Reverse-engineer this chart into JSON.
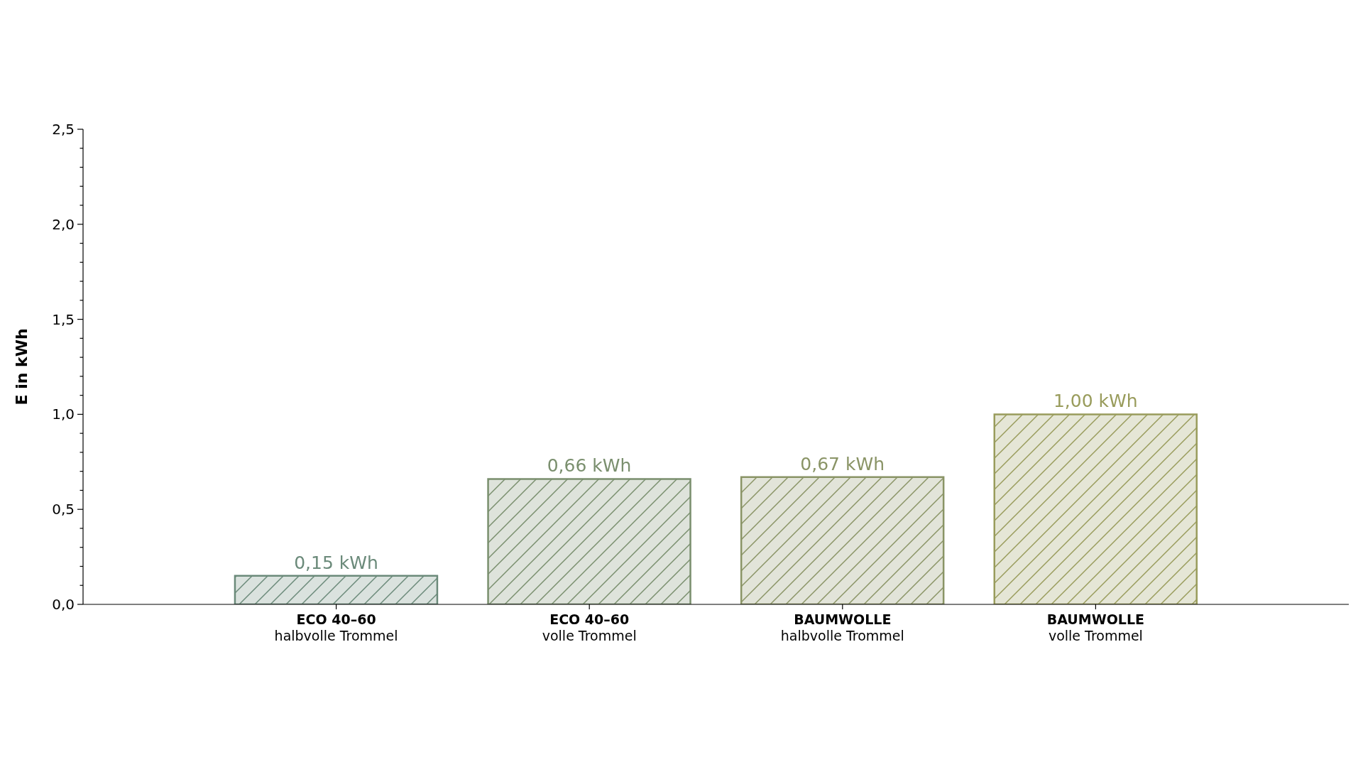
{
  "chart_data": {
    "type": "bar",
    "ylabel": "E in kWh",
    "categories": [
      "ECO 40–60\nhalbvolle Trommel",
      "ECO 40–60\nvolle Trommel",
      "BAUMWOLLE\nhalbvolle Trommel",
      "BAUMWOLLE\nvolle Trommel"
    ],
    "values": [
      0.15,
      0.66,
      0.67,
      1.0
    ],
    "colors": [
      "#6b8a7a",
      "#7a8f6e",
      "#8a9466",
      "#999c5c"
    ],
    "value_labels": [
      "0,15 kWh",
      "0,66 kWh",
      "0,67 kWh",
      "1,00 kWh"
    ],
    "ylim": [
      0,
      2.5
    ],
    "yticks": [
      {
        "value": 0,
        "label": "0,0"
      },
      {
        "value": 0.1,
        "label": null
      },
      {
        "value": 0.2,
        "label": null
      },
      {
        "value": 0.3,
        "label": null
      },
      {
        "value": 0.4,
        "label": null
      },
      {
        "value": 0.5,
        "label": "0,5"
      },
      {
        "value": 0.6,
        "label": null
      },
      {
        "value": 0.7,
        "label": null
      },
      {
        "value": 0.8,
        "label": null
      },
      {
        "value": 0.9,
        "label": null
      },
      {
        "value": 1.0,
        "label": "1,0"
      },
      {
        "value": 1.1,
        "label": null
      },
      {
        "value": 1.2,
        "label": null
      },
      {
        "value": 1.3,
        "label": null
      },
      {
        "value": 1.4,
        "label": null
      },
      {
        "value": 1.5,
        "label": "1,5"
      },
      {
        "value": 1.6,
        "label": null
      },
      {
        "value": 1.7,
        "label": null
      },
      {
        "value": 1.8,
        "label": null
      },
      {
        "value": 1.9,
        "label": null
      },
      {
        "value": 2.0,
        "label": "2,0"
      },
      {
        "value": 2.1,
        "label": null
      },
      {
        "value": 2.2,
        "label": null
      },
      {
        "value": 2.3,
        "label": null
      },
      {
        "value": 2.4,
        "label": null
      },
      {
        "value": 2.5,
        "label": "2,5"
      }
    ]
  }
}
